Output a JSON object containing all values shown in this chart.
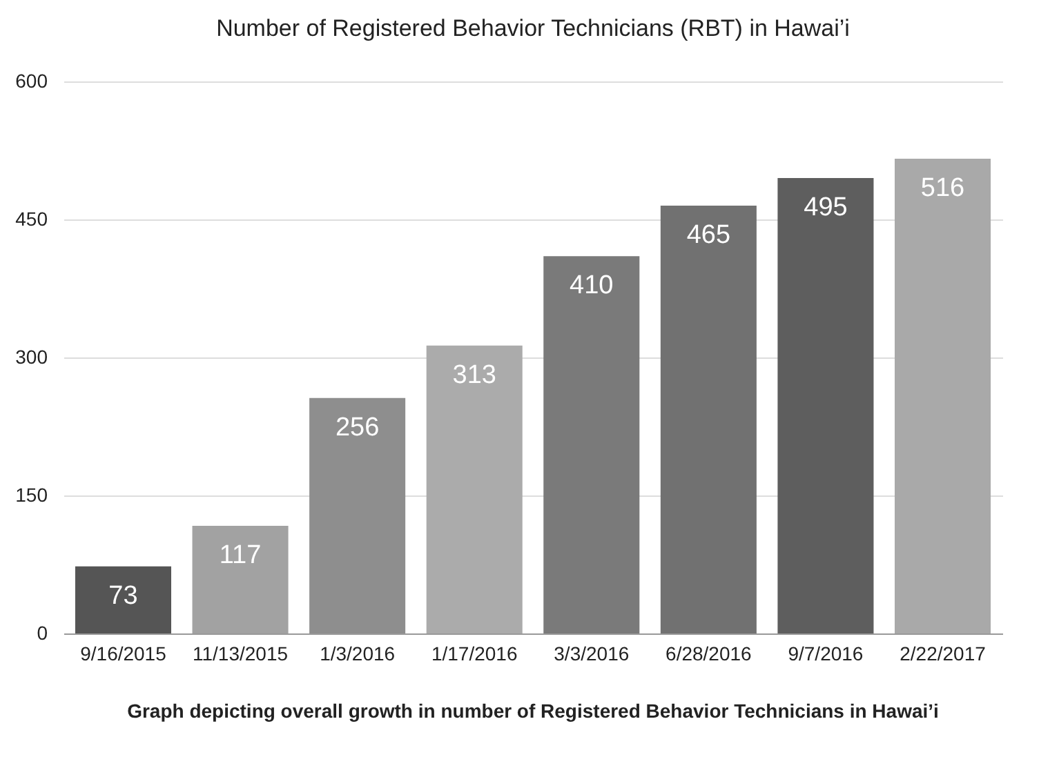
{
  "chart_data": {
    "type": "bar",
    "title": "Number of Registered Behavior Technicians (RBT) in Hawai’i",
    "categories": [
      "9/16/2015",
      "11/13/2015",
      "1/3/2016",
      "1/17/2016",
      "3/3/2016",
      "6/28/2016",
      "9/7/2016",
      "2/22/2017"
    ],
    "values": [
      73,
      117,
      256,
      313,
      410,
      465,
      495,
      516
    ],
    "colors": [
      "#555555",
      "#a2a2a2",
      "#8e8e8e",
      "#ababab",
      "#7a7a7a",
      "#717171",
      "#5e5e5e",
      "#a9a9a9"
    ],
    "ylim": [
      0,
      600
    ],
    "yticks": [
      0,
      150,
      300,
      450,
      600
    ],
    "grid": "y",
    "data_labels": true,
    "annotations": [
      "Graph depicting overall growth in number of Registered Behavior Technicians in Hawai’i"
    ]
  }
}
